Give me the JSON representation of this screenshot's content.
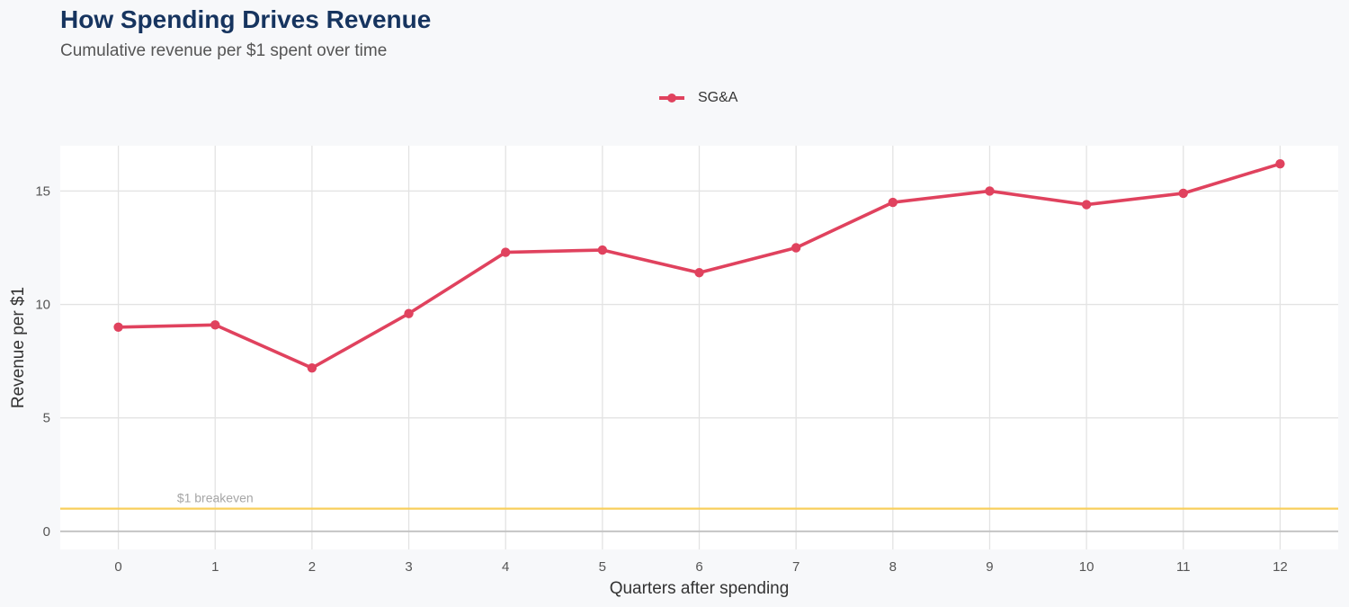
{
  "chart_data": {
    "type": "line",
    "title": "How Spending Drives Revenue",
    "subtitle": "Cumulative revenue per $1 spent over time",
    "xlabel": "Quarters after spending",
    "ylabel": "Revenue per $1",
    "x": [
      0,
      1,
      2,
      3,
      4,
      5,
      6,
      7,
      8,
      9,
      10,
      11,
      12
    ],
    "xlim": [
      -0.6,
      12.6
    ],
    "ylim": [
      -0.8,
      17
    ],
    "yticks": [
      0,
      5,
      10,
      15
    ],
    "series": [
      {
        "name": "SG&A",
        "color": "#e0425e",
        "values": [
          9.0,
          9.1,
          7.2,
          9.6,
          12.3,
          12.4,
          11.4,
          12.5,
          14.5,
          15.0,
          14.4,
          14.9,
          16.2
        ]
      }
    ],
    "reference_line": {
      "y": 1,
      "label": "$1 breakeven",
      "color": "#f8cf5c"
    },
    "legend_position": "top-center",
    "grid": true
  }
}
